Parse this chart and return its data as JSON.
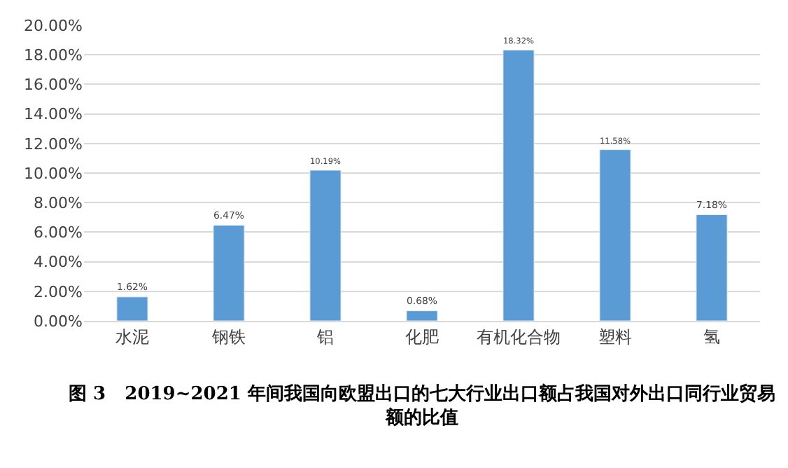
{
  "chart_data": {
    "type": "bar",
    "categories": [
      "水泥",
      "钢铁",
      "铝",
      "化肥",
      "有机化合物",
      "塑料",
      "氢"
    ],
    "values": [
      1.62,
      6.47,
      10.19,
      0.68,
      18.32,
      11.58,
      7.18
    ],
    "value_labels": [
      "1.62%",
      "6.47%",
      "10.19%",
      "0.68%",
      "18.32%",
      "11.58%",
      "7.18%"
    ],
    "color": "#5b9bd5",
    "ylim": [
      0,
      20
    ],
    "yticks": [
      {
        "value": 0,
        "label": "0.00%"
      },
      {
        "value": 2,
        "label": "2.00%"
      },
      {
        "value": 4,
        "label": "4.00%"
      },
      {
        "value": 6,
        "label": "6.00%"
      },
      {
        "value": 8,
        "label": "8.00%"
      },
      {
        "value": 10,
        "label": "10.00%"
      },
      {
        "value": 12,
        "label": "12.00%"
      },
      {
        "value": 14,
        "label": "14.00%"
      },
      {
        "value": 16,
        "label": "16.00%"
      },
      {
        "value": 18,
        "label": "18.00%"
      },
      {
        "value": 20,
        "label": "20.00%"
      }
    ],
    "grid": "y",
    "legend": false,
    "annotations": [
      "图 3   2019~2021 年间我国向欧盟出口的七大行业出口额占我国对外出口同行业贸易额的比值"
    ]
  }
}
